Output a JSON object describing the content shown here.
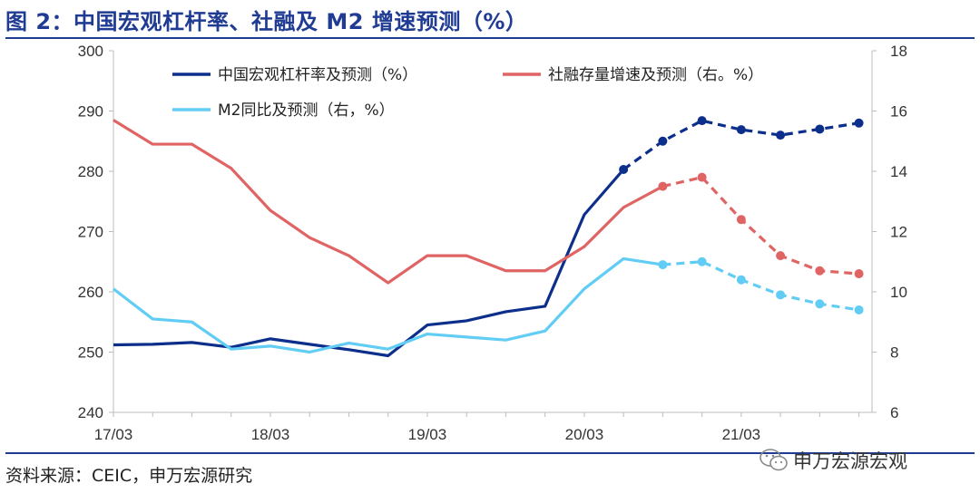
{
  "title": "图 2：中国宏观杠杆率、社融及 M2 增速预测（%）",
  "source": "资料来源：CEIC，申万宏源研究",
  "watermark": "申万宏源宏观",
  "chart_data": {
    "type": "line",
    "x_ticks": [
      "17/03",
      "18/03",
      "19/03",
      "20/03",
      "21/03"
    ],
    "y_left": {
      "range": [
        240,
        300
      ],
      "ticks": [
        240,
        250,
        260,
        270,
        280,
        290,
        300
      ]
    },
    "y_right": {
      "range": [
        6,
        18
      ],
      "ticks": [
        6,
        8,
        10,
        12,
        14,
        16,
        18
      ]
    },
    "legend_placement": "top",
    "grid": false,
    "series": [
      {
        "name": "中国宏观杠杆率及预测（%）",
        "axis": "left",
        "color": "#0d2f8c",
        "x": [
          "2017-03",
          "2017-06",
          "2017-09",
          "2017-12",
          "2018-03",
          "2018-06",
          "2018-09",
          "2018-12",
          "2019-03",
          "2019-06",
          "2019-09",
          "2019-12",
          "2020-03",
          "2020-06",
          "2020-09",
          "2020-12",
          "2021-03",
          "2021-06",
          "2021-09",
          "2021-12"
        ],
        "values": [
          251.2,
          251.3,
          251.6,
          250.8,
          252.2,
          251.3,
          250.4,
          249.4,
          254.5,
          255.2,
          256.7,
          257.6,
          272.8,
          280.3,
          285.0,
          288.4,
          286.9,
          286.0,
          287.0,
          288.0
        ],
        "forecast_from_index": 13
      },
      {
        "name": "社融存量增速及预测（右。%）",
        "axis": "right",
        "color": "#e06464",
        "x": [
          "2017-03",
          "2017-06",
          "2017-09",
          "2017-12",
          "2018-03",
          "2018-06",
          "2018-09",
          "2018-12",
          "2019-03",
          "2019-06",
          "2019-09",
          "2019-12",
          "2020-03",
          "2020-06",
          "2020-09",
          "2020-12",
          "2021-03",
          "2021-06",
          "2021-09",
          "2021-12"
        ],
        "values": [
          15.7,
          14.9,
          14.9,
          14.1,
          12.7,
          11.8,
          11.2,
          10.3,
          11.2,
          11.2,
          10.7,
          10.7,
          11.5,
          12.8,
          13.5,
          13.8,
          12.4,
          11.2,
          10.7,
          10.6
        ],
        "forecast_from_index": 14
      },
      {
        "name": "M2同比及预测（右，%）",
        "axis": "right",
        "color": "#62cdf4",
        "x": [
          "2017-03",
          "2017-06",
          "2017-09",
          "2017-12",
          "2018-03",
          "2018-06",
          "2018-09",
          "2018-12",
          "2019-03",
          "2019-06",
          "2019-09",
          "2019-12",
          "2020-03",
          "2020-06",
          "2020-09",
          "2020-12",
          "2021-03",
          "2021-06",
          "2021-09",
          "2021-12"
        ],
        "values": [
          10.1,
          9.1,
          9.0,
          8.1,
          8.2,
          8.0,
          8.3,
          8.1,
          8.6,
          8.5,
          8.4,
          8.7,
          10.1,
          11.1,
          10.9,
          11.0,
          10.4,
          9.9,
          9.6,
          9.4
        ],
        "forecast_from_index": 14
      }
    ]
  }
}
